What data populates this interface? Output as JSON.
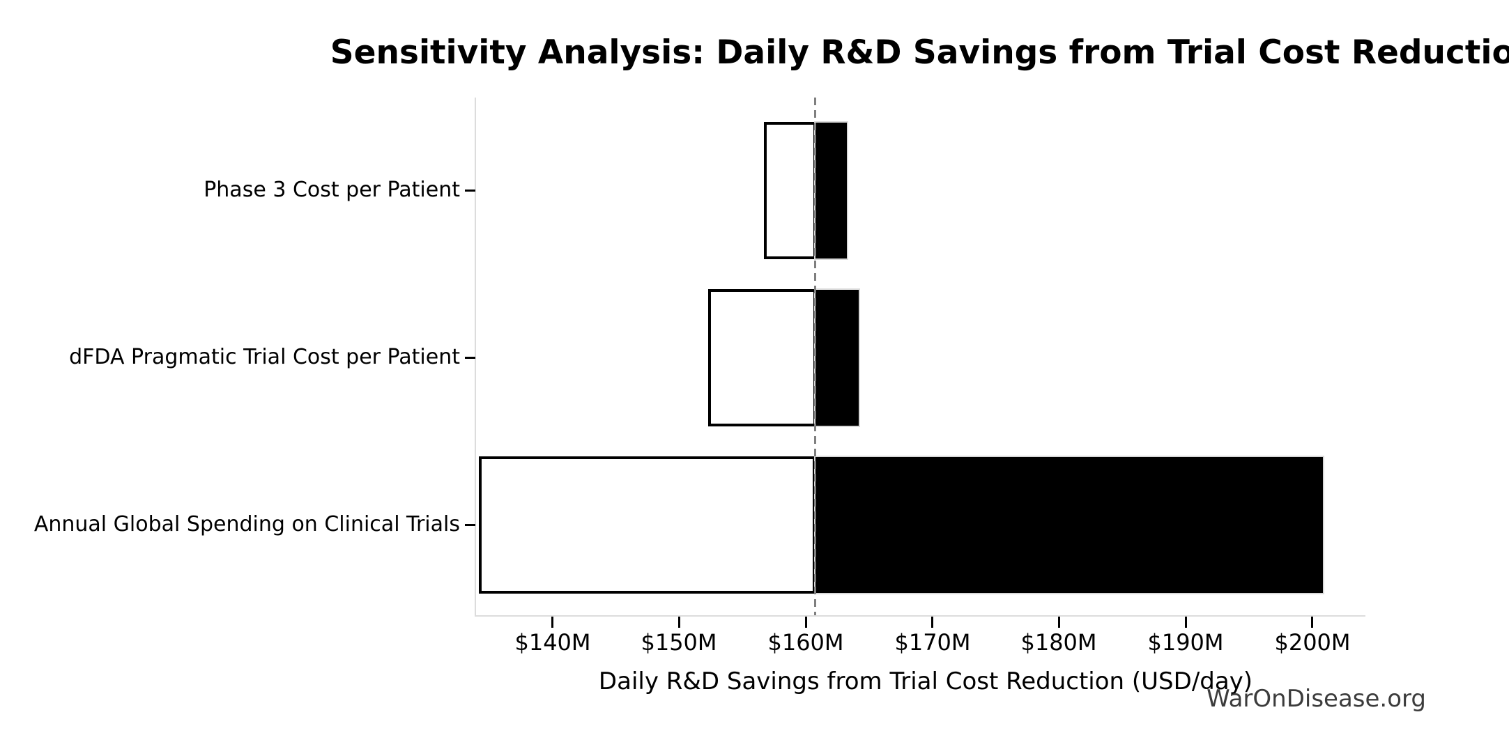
{
  "page": {
    "background_color": "#ffffff"
  },
  "chart_data": {
    "type": "bar",
    "variant": "tornado-sensitivity",
    "title": "Sensitivity Analysis: Daily R&D Savings from Trial Cost Reduction",
    "xlabel": "Daily R&D Savings from Trial Cost Reduction (USD/day)",
    "ylabel": "",
    "watermark": "WarOnDisease.org",
    "unit": "USD millions per day",
    "orientation": "horizontal",
    "grid": false,
    "legend": "none",
    "baseline_value": 160.7,
    "baseline_style": "dashed-vertical-line",
    "xlim": [
      133.9,
      204.2
    ],
    "x_ticks": [
      {
        "value": 140,
        "label": "$140M"
      },
      {
        "value": 150,
        "label": "$150M"
      },
      {
        "value": 160,
        "label": "$160M"
      },
      {
        "value": 170,
        "label": "$170M"
      },
      {
        "value": 180,
        "label": "$180M"
      },
      {
        "value": 190,
        "label": "$190M"
      },
      {
        "value": 200,
        "label": "$200M"
      }
    ],
    "categories": [
      "Phase 3 Cost per Patient",
      "dFDA Pragmatic Trial Cost per Patient",
      "Annual Global Spending on Clinical Trials"
    ],
    "series": [
      {
        "name": "Phase 3 Cost per Patient",
        "low": 156.7,
        "high": 163.3
      },
      {
        "name": "dFDA Pragmatic Trial Cost per Patient",
        "low": 152.3,
        "high": 164.2
      },
      {
        "name": "Annual Global Spending on Clinical Trials",
        "low": 134.2,
        "high": 200.9
      }
    ],
    "colors": {
      "low_side_fill": "#ffffff",
      "low_side_edge": "#000000",
      "high_side_fill": "#000000",
      "high_side_edge": "#d9d9d9",
      "baseline_line": "#7f7f7f",
      "axis_spine": "#dcdcdc",
      "tick_mark": "#000000",
      "text": "#000000",
      "watermark_text": "#3c3c3c"
    }
  }
}
